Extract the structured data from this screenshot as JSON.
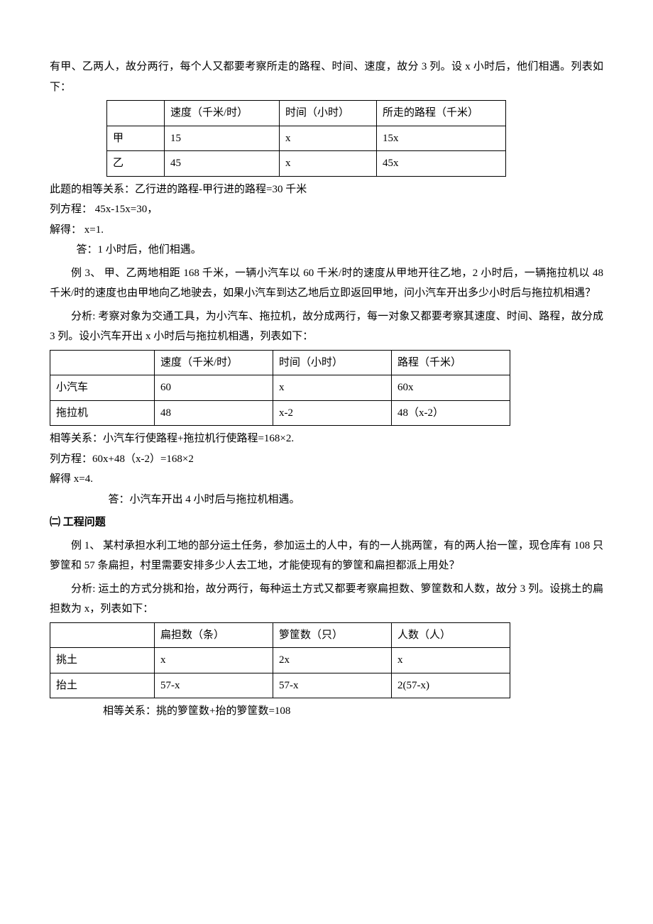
{
  "intro": {
    "p1": "有甲、乙两人，故分两行，每个人又都要考察所走的路程、时间、速度，故分 3 列。设 x 小时后，他们相遇。列表如下：",
    "table1": {
      "headers": [
        "",
        "速度（千米/时）",
        "时间（小时）",
        "所走的路程（千米）"
      ],
      "rows": [
        [
          "甲",
          "15",
          "x",
          "15x"
        ],
        [
          "乙",
          "45",
          "x",
          "45x"
        ]
      ]
    },
    "p2": "此题的相等关系：乙行进的路程-甲行进的路程=30 千米",
    "p3": "列方程：   45x-15x=30，",
    "p4": "解得：            x=1.",
    "p5": "答：1 小时后，他们相遇。"
  },
  "ex3": {
    "title": "例 3、  甲、乙两地相距 168 千米，一辆小汽车以 60 千米/时的速度从甲地开往乙地，2 小时后，一辆拖拉机以 48 千米/时的速度也由甲地向乙地驶去，如果小汽车到达乙地后立即返回甲地，问小汽车开出多少小时后与拖拉机相遇？",
    "analysis": "分析: 考察对象为交通工具，为小汽车、拖拉机，故分成两行，每一对象又都要考察其速度、时间、路程，故分成 3 列。设小汽车开出 x 小时后与拖拉机相遇，列表如下：",
    "table2": {
      "headers": [
        "",
        "速度（千米/时）",
        "时间（小时）",
        "路程（千米）"
      ],
      "rows": [
        [
          "小汽车",
          "60",
          "x",
          "60x"
        ],
        [
          "拖拉机",
          "48",
          "x-2",
          "48（x-2）"
        ]
      ]
    },
    "rel": "相等关系：小汽车行使路程+拖拉机行使路程=168×2.",
    "eq": "列方程：60x+48（x-2）=168×2",
    "solve": " 解得                      x=4.",
    "ans": "答：小汽车开出 4 小时后与拖拉机相遇。"
  },
  "sec2": {
    "heading": "㈡    工程问题",
    "ex1": {
      "title": "例 1、 某村承担水利工地的部分运土任务，参加运土的人中，有的一人挑两筐，有的两人抬一筐，现仓库有 108 只箩筐和 57 条扁担，村里需要安排多少人去工地，才能使现有的箩筐和扁担都派上用处？",
      "analysis": "分析: 运土的方式分挑和抬，故分两行，每种运土方式又都要考察扁担数、箩筐数和人数，故分 3 列。设挑土的扁担数为 x，列表如下：",
      "table3": {
        "headers": [
          "",
          "扁担数（条）",
          "箩筐数（只）",
          "人数（人）"
        ],
        "rows": [
          [
            "挑土",
            "x",
            "2x",
            "x"
          ],
          [
            "抬土",
            "57-x",
            "57-x",
            "2(57-x)"
          ]
        ]
      },
      "rel": "相等关系：挑的箩筐数+抬的箩筐数=108"
    }
  }
}
